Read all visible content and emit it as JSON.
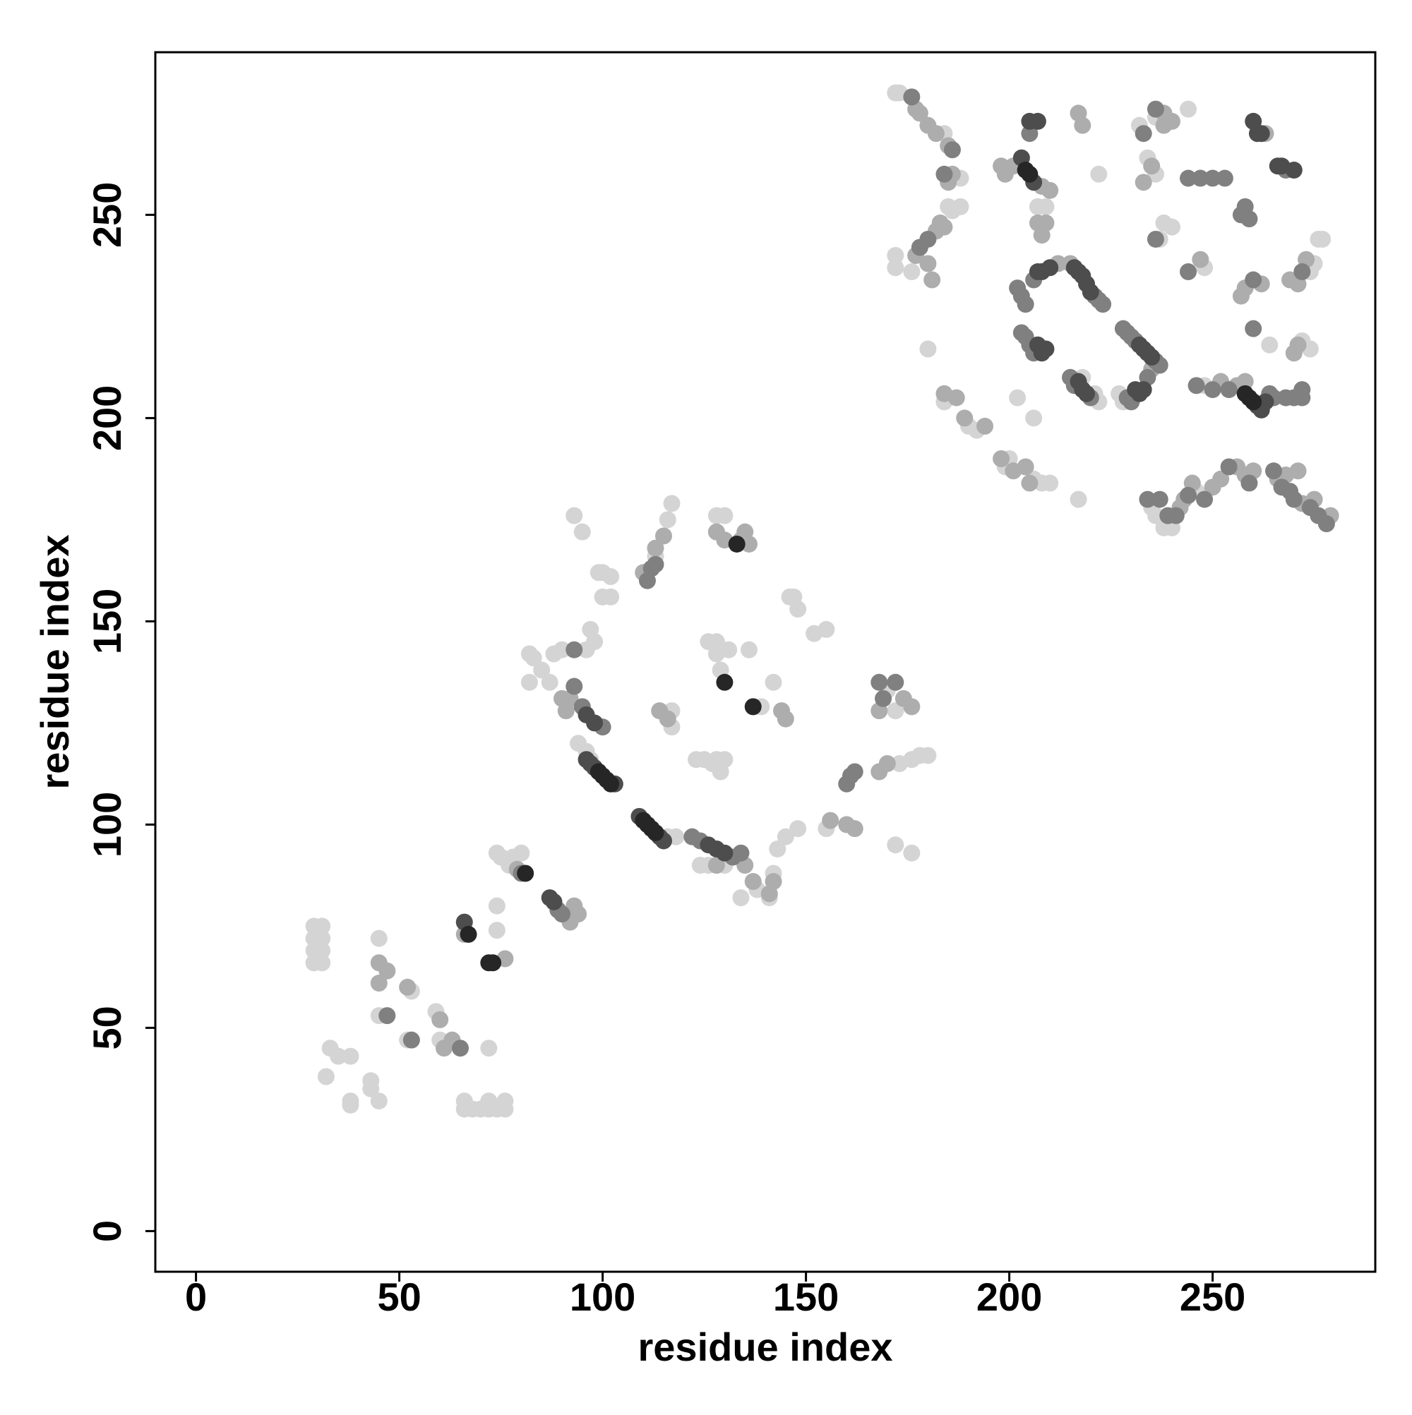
{
  "chart_data": {
    "type": "scatter",
    "x_label": "residue index",
    "y_label": "residue index",
    "xlim": [
      -10,
      290
    ],
    "ylim": [
      -10,
      290
    ],
    "xticks": [
      0,
      50,
      100,
      150,
      200,
      250
    ],
    "yticks": [
      0,
      50,
      100,
      150,
      200,
      250
    ],
    "grid": false,
    "series": [
      {
        "color": "#d4d4d4",
        "x": [
          29,
          29,
          29,
          29,
          31,
          31,
          31,
          31,
          32,
          33,
          35,
          38,
          38,
          38,
          43,
          43,
          45,
          45,
          45,
          53,
          52,
          59,
          60,
          66,
          66,
          68,
          70,
          72,
          72,
          74,
          76,
          76,
          72,
          74,
          74,
          74,
          75,
          77,
          78,
          80,
          82,
          83,
          85,
          88,
          90,
          87,
          82,
          94,
          96,
          97,
          116,
          118,
          124,
          126,
          130,
          134,
          138,
          141,
          142,
          143,
          145,
          148,
          155,
          173,
          176,
          178,
          180,
          172,
          176,
          170,
          172,
          142,
          139,
          129,
          128,
          126,
          128,
          131,
          136,
          123,
          125,
          127,
          128,
          130,
          129,
          117,
          117,
          116,
          117,
          113,
          93,
          95,
          99,
          100,
          100,
          102,
          102,
          97,
          98,
          96,
          128,
          130,
          128,
          147,
          148,
          146,
          152,
          155,
          172,
          173,
          184,
          188,
          185,
          186,
          188,
          176,
          172,
          172,
          180,
          184,
          190,
          192,
          199,
          200,
          202,
          206,
          208,
          207,
          209,
          222,
          217,
          234,
          236,
          232,
          236,
          244,
          237,
          238,
          240,
          235,
          236,
          238,
          240,
          246,
          248,
          248,
          274,
          275,
          276,
          277,
          272,
          274,
          264,
          210,
          206,
          222,
          218,
          228,
          221,
          227
        ],
        "values": [
          66,
          69,
          72,
          75,
          66,
          69,
          72,
          75,
          38,
          45,
          43,
          43,
          31,
          32,
          37,
          35,
          32,
          72,
          53,
          59,
          47,
          54,
          47,
          30,
          32,
          30,
          30,
          30,
          32,
          30,
          30,
          32,
          45,
          74,
          80,
          93,
          92,
          90,
          92,
          93,
          142,
          141,
          138,
          142,
          143,
          135,
          135,
          120,
          118,
          116,
          97,
          97,
          90,
          90,
          90,
          82,
          84,
          82,
          88,
          94,
          97,
          99,
          99,
          115,
          116,
          117,
          117,
          95,
          93,
          133,
          128,
          135,
          129,
          138,
          142,
          145,
          145,
          143,
          143,
          116,
          116,
          115,
          116,
          116,
          113,
          128,
          124,
          175,
          179,
          166,
          176,
          172,
          162,
          162,
          156,
          161,
          156,
          148,
          145,
          143,
          176,
          176,
          172,
          156,
          153,
          156,
          147,
          148,
          280,
          280,
          270,
          259,
          252,
          251,
          252,
          236,
          240,
          237,
          217,
          204,
          198,
          197,
          188,
          190,
          205,
          200,
          184,
          252,
          252,
          260,
          180,
          264,
          260,
          272,
          274,
          276,
          244,
          248,
          247,
          178,
          176,
          173,
          173,
          182,
          237,
          208,
          236,
          238,
          244,
          244,
          219,
          217,
          218,
          184,
          185,
          204,
          210,
          204,
          206,
          206
        ]
      },
      {
        "color": "#adadad",
        "x": [
          45,
          47,
          45,
          52,
          60,
          61,
          63,
          66,
          76,
          79,
          92,
          93,
          94,
          90,
          91,
          92,
          116,
          114,
          128,
          135,
          137,
          142,
          141,
          156,
          160,
          162,
          168,
          170,
          174,
          176,
          168,
          144,
          145,
          110,
          113,
          115,
          128,
          130,
          134,
          135,
          136,
          177,
          178,
          180,
          182,
          185,
          185,
          186,
          183,
          184,
          182,
          177,
          180,
          181,
          198,
          199,
          201,
          208,
          207,
          208,
          209,
          210,
          212,
          215,
          217,
          218,
          235,
          233,
          238,
          238,
          240,
          235,
          242,
          243,
          245,
          250,
          252,
          256,
          247,
          252,
          256,
          258,
          257,
          258,
          262,
          258,
          260,
          266,
          268,
          271,
          272,
          275,
          279,
          269,
          271,
          273,
          270,
          271,
          263,
          184,
          187,
          189,
          194,
          198,
          201,
          204,
          205
        ],
        "values": [
          66,
          64,
          61,
          60,
          52,
          45,
          47,
          73,
          67,
          89,
          76,
          80,
          78,
          131,
          128,
          131,
          126,
          128,
          90,
          90,
          86,
          86,
          83,
          101,
          100,
          99,
          113,
          115,
          131,
          129,
          128,
          128,
          126,
          162,
          168,
          171,
          172,
          170,
          170,
          172,
          169,
          276,
          275,
          272,
          270,
          267,
          258,
          260,
          248,
          247,
          246,
          240,
          238,
          234,
          262,
          260,
          262,
          257,
          248,
          245,
          248,
          256,
          238,
          238,
          275,
          272,
          262,
          258,
          275,
          272,
          273,
          212,
          178,
          180,
          184,
          183,
          185,
          188,
          239,
          209,
          208,
          209,
          230,
          232,
          233,
          186,
          187,
          185,
          186,
          187,
          179,
          180,
          176,
          234,
          233,
          239,
          216,
          218,
          270,
          206,
          205,
          200,
          198,
          190,
          187,
          188,
          184
        ]
      },
      {
        "color": "#808080",
        "x": [
          47,
          53,
          65,
          80,
          89,
          90,
          93,
          93,
          95,
          100,
          122,
          124,
          132,
          134,
          160,
          161,
          162,
          111,
          112,
          113,
          168,
          169,
          172,
          176,
          180,
          178,
          184,
          186,
          205,
          202,
          203,
          204,
          206,
          203,
          204,
          205,
          206,
          221,
          222,
          223,
          215,
          216,
          220,
          228,
          229,
          230,
          231,
          236,
          237,
          229,
          230,
          234,
          233,
          236,
          236,
          234,
          237,
          239,
          241,
          244,
          248,
          254,
          244,
          244,
          247,
          250,
          253,
          246,
          250,
          254,
          264,
          265,
          268,
          270,
          272,
          272,
          257,
          258,
          259,
          260,
          272,
          260,
          259,
          265,
          267,
          269,
          270,
          274,
          276,
          278,
          268
        ],
        "values": [
          53,
          47,
          45,
          88,
          79,
          78,
          143,
          134,
          129,
          124,
          97,
          96,
          92,
          93,
          110,
          112,
          113,
          160,
          163,
          164,
          135,
          131,
          135,
          279,
          244,
          242,
          260,
          266,
          270,
          232,
          230,
          228,
          234,
          221,
          220,
          218,
          216,
          230,
          229,
          228,
          210,
          208,
          205,
          222,
          221,
          220,
          219,
          214,
          213,
          205,
          204,
          210,
          270,
          276,
          244,
          180,
          180,
          176,
          176,
          181,
          180,
          188,
          236,
          259,
          259,
          259,
          259,
          208,
          207,
          207,
          206,
          205,
          205,
          205,
          205,
          207,
          250,
          252,
          249,
          234,
          236,
          222,
          184,
          187,
          183,
          182,
          180,
          178,
          176,
          174,
          261
        ]
      },
      {
        "color": "#4d4d4d",
        "x": [
          96,
          97,
          98,
          103,
          109,
          114,
          115,
          87,
          88,
          66,
          96,
          98,
          126,
          128,
          130,
          206,
          203,
          205,
          207,
          208,
          209,
          207,
          216,
          217,
          218,
          219,
          220,
          232,
          233,
          234,
          235,
          260,
          261,
          262,
          266,
          267,
          270,
          217,
          218,
          219,
          231,
          232,
          233,
          261,
          262,
          263,
          207,
          208,
          210
        ],
        "values": [
          116,
          115,
          114,
          110,
          102,
          97,
          96,
          82,
          81,
          76,
          127,
          125,
          95,
          94,
          93,
          258,
          264,
          273,
          273,
          216,
          217,
          218,
          237,
          236,
          235,
          233,
          231,
          218,
          217,
          216,
          215,
          273,
          270,
          270,
          262,
          262,
          261,
          209,
          207,
          206,
          207,
          206,
          207,
          203,
          202,
          204,
          236,
          236,
          237
        ]
      },
      {
        "color": "#262626",
        "x": [
          67,
          72,
          73,
          99,
          100,
          101,
          102,
          110,
          111,
          112,
          113,
          130,
          137,
          133,
          204,
          205,
          258,
          259,
          260,
          81
        ],
        "values": [
          73,
          66,
          66,
          113,
          112,
          111,
          110,
          101,
          100,
          99,
          98,
          135,
          129,
          169,
          261,
          260,
          206,
          205,
          204,
          88
        ]
      }
    ]
  }
}
